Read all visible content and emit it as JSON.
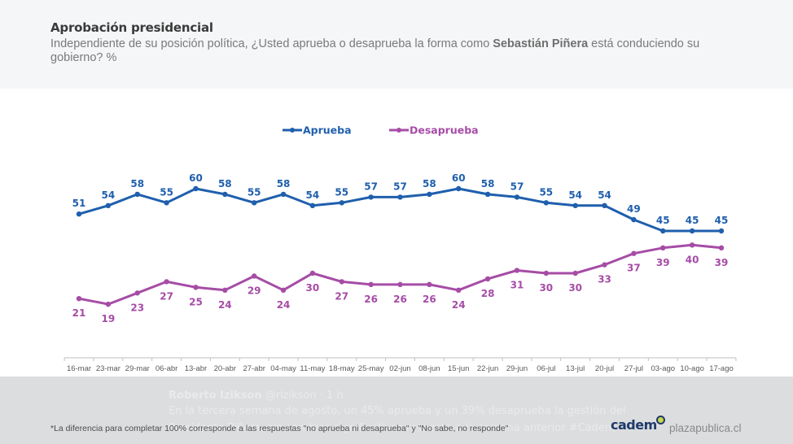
{
  "header": {
    "title": "Aprobación presidencial",
    "subtitle_part1": "Independiente de su posición política, ¿Usted aprueba o desaprueba la forma como ",
    "subtitle_bold": "Sebastián Piñera",
    "subtitle_part2": " está conduciendo su gobierno? %"
  },
  "colors": {
    "aprueba": "#1f5fad",
    "desaprueba": "#a64ca6",
    "axis": "#bfbfbf",
    "tick_label": "#595959"
  },
  "chart_data": {
    "type": "line",
    "title": "Aprobación presidencial",
    "xlabel": "",
    "ylabel": "%",
    "ylim": [
      0,
      60
    ],
    "grid": false,
    "legend_position": "top-center",
    "categories": [
      "16-mar",
      "23-mar",
      "29-mar",
      "06-abr",
      "13-abr",
      "20-abr",
      "27-abr",
      "04-may",
      "11-may",
      "18-may",
      "25-may",
      "02-jun",
      "08-jun",
      "15-jun",
      "22-jun",
      "29-jun",
      "06-jul",
      "13-jul",
      "20-jul",
      "27-jul",
      "03-ago",
      "10-ago",
      "17-ago"
    ],
    "series": [
      {
        "name": "Aprueba",
        "color": "#1f5fad",
        "label_position": "above",
        "values": [
          51,
          54,
          58,
          55,
          60,
          58,
          55,
          58,
          54,
          55,
          57,
          57,
          58,
          60,
          58,
          57,
          55,
          54,
          54,
          49,
          45,
          45,
          45
        ]
      },
      {
        "name": "Desaprueba",
        "color": "#a64ca6",
        "label_position": "below",
        "values": [
          21,
          19,
          23,
          27,
          25,
          24,
          29,
          24,
          30,
          27,
          26,
          26,
          26,
          24,
          28,
          31,
          30,
          30,
          33,
          37,
          39,
          40,
          39
        ]
      }
    ]
  },
  "footer": {
    "footnote": "*La diferencia para completar 100% corresponde a las respuestas \"no aprueba ni desaprueba\" y \"No sabe, no responde\"",
    "logo_text": "cadem",
    "site": "plazapublica.cl",
    "overlay_author": "Roberto Izikson",
    "overlay_handle": "@rizikson · 1 h",
    "overlay_line2": "En la tercera semana de agosto, un 45% aprueba y un 39% desaprueba la gestión del",
    "overlay_line3": "Presidente Piñera, sin cambios significativos respecto a la semana anterior #Cadem"
  }
}
